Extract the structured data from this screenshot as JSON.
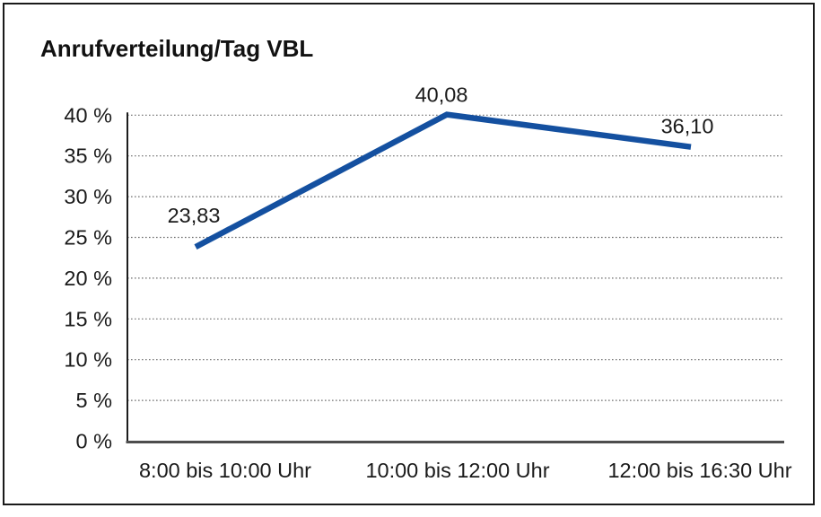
{
  "title": "Anrufverteilung/Tag VBL",
  "chart_data": {
    "type": "line",
    "title": "Anrufverteilung/Tag VBL",
    "categories": [
      "8:00 bis 10:00 Uhr",
      "10:00 bis 12:00 Uhr",
      "12:00 bis 16:30 Uhr"
    ],
    "values": [
      23.83,
      40.08,
      36.1
    ],
    "data_labels": [
      "23,83",
      "40,08",
      "36,10"
    ],
    "yticks": [
      0,
      5,
      10,
      15,
      20,
      25,
      30,
      35,
      40
    ],
    "ytick_labels": [
      "0 %",
      "5 %",
      "10 %",
      "15 %",
      "20 %",
      "25 %",
      "30 %",
      "35 %",
      "40 %"
    ],
    "ylim": [
      0,
      40
    ],
    "xlabel": "",
    "ylabel": "",
    "grid": "horizontal-dotted",
    "legend_position": "none",
    "line_color": "#1450A0",
    "axis_color": "#2b2b2b",
    "grid_color": "#6e6e6e"
  }
}
